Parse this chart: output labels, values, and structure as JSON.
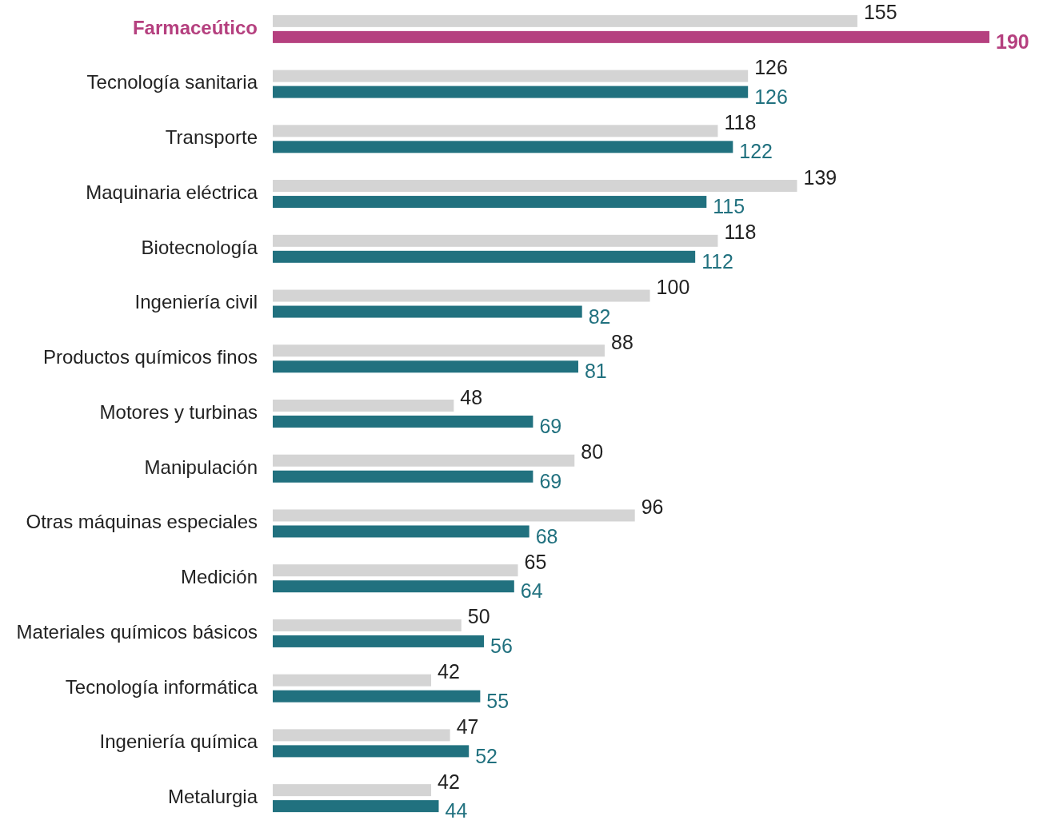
{
  "chart_data": {
    "type": "bar",
    "orientation": "horizontal",
    "data_labels": true,
    "xlim": [
      0,
      190
    ],
    "categories": [
      "Farmaceútico",
      "Tecnología sanitaria",
      "Transporte",
      "Maquinaria eléctrica",
      "Biotecnología",
      "Ingeniería civil",
      "Productos químicos finos",
      "Motores y turbinas",
      "Manipulación",
      "Otras máquinas especiales",
      "Medición",
      "Materiales químicos básicos",
      "Tecnología informática",
      "Ingeniería química",
      "Metalurgia"
    ],
    "series": [
      {
        "color": "#d4d4d4",
        "values": [
          155,
          126,
          118,
          139,
          118,
          100,
          88,
          48,
          80,
          96,
          65,
          50,
          42,
          47,
          42
        ]
      },
      {
        "color": "#21717f",
        "colors": [
          "#b5407f",
          "#21717f",
          "#21717f",
          "#21717f",
          "#21717f",
          "#21717f",
          "#21717f",
          "#21717f",
          "#21717f",
          "#21717f",
          "#21717f",
          "#21717f",
          "#21717f",
          "#21717f",
          "#21717f"
        ],
        "values": [
          190,
          126,
          122,
          115,
          112,
          82,
          81,
          69,
          69,
          68,
          64,
          56,
          55,
          52,
          44
        ]
      }
    ]
  }
}
